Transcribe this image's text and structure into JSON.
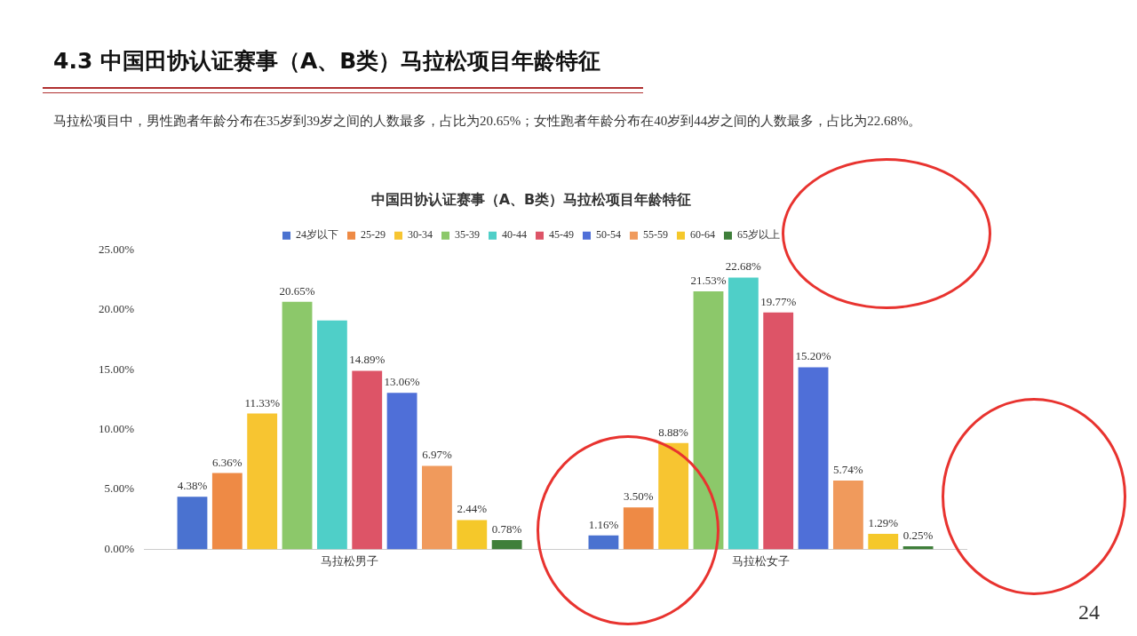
{
  "chart_data": {
    "type": "bar",
    "title": "中国田协认证赛事（A、B类）马拉松项目年龄特征",
    "subtitle": "4.3 中国田协认证赛事（A、B类）马拉松项目年龄特征",
    "annotations": [
      "马拉松项目中，男性跑者年龄分布在35岁到39岁之间的人数最多，占比为20.65%；女性跑者年龄分布在40岁到44岁之间的人数最多，占比为22.68%。",
      "24"
    ],
    "categories": [
      "马拉松男子",
      "马拉松女子"
    ],
    "series": [
      {
        "name": "24岁以下",
        "color": "#4a72d0",
        "values": [
          4.38,
          1.16
        ],
        "value_labels": [
          "4.38%",
          "1.16%"
        ]
      },
      {
        "name": "25-29",
        "color": "#ee8a45",
        "values": [
          6.36,
          3.5
        ],
        "value_labels": [
          "6.36%",
          "3.50%"
        ]
      },
      {
        "name": "30-34",
        "color": "#f7c531",
        "values": [
          11.33,
          8.88
        ],
        "value_labels": [
          "11.33%",
          "8.88%"
        ]
      },
      {
        "name": "35-39",
        "color": "#8cc86a",
        "values": [
          20.65,
          21.53
        ],
        "value_labels": [
          "20.65%",
          "21.53%"
        ]
      },
      {
        "name": "40-44",
        "color": "#4fcfc8",
        "values": [
          19.1,
          22.68
        ],
        "value_labels": [
          null,
          "22.68%"
        ]
      },
      {
        "name": "45-49",
        "color": "#dd5467",
        "values": [
          14.89,
          19.77
        ],
        "value_labels": [
          "14.89%",
          "19.77%"
        ]
      },
      {
        "name": "50-54",
        "color": "#4f6fd8",
        "values": [
          13.06,
          15.2
        ],
        "value_labels": [
          "13.06%",
          "15.20%"
        ]
      },
      {
        "name": "55-59",
        "color": "#f09a5c",
        "values": [
          6.97,
          5.74
        ],
        "value_labels": [
          "6.97%",
          "5.74%"
        ]
      },
      {
        "name": "60-64",
        "color": "#f5c82a",
        "values": [
          2.44,
          1.29
        ],
        "value_labels": [
          "2.44%",
          "1.29%"
        ]
      },
      {
        "name": "65岁以上",
        "color": "#3f7f3a",
        "values": [
          0.78,
          0.25
        ],
        "value_labels": [
          "0.78%",
          "0.25%"
        ]
      }
    ],
    "ylim": [
      0,
      25
    ],
    "yticks": [
      {
        "value": 0,
        "label": "0.00%"
      },
      {
        "value": 5,
        "label": "5.00%"
      },
      {
        "value": 10,
        "label": "10.00%"
      },
      {
        "value": 15,
        "label": "15.00%"
      },
      {
        "value": 20,
        "label": "20.00%"
      },
      {
        "value": 25,
        "label": "25.00%"
      }
    ],
    "grid": false,
    "legend": "top"
  }
}
